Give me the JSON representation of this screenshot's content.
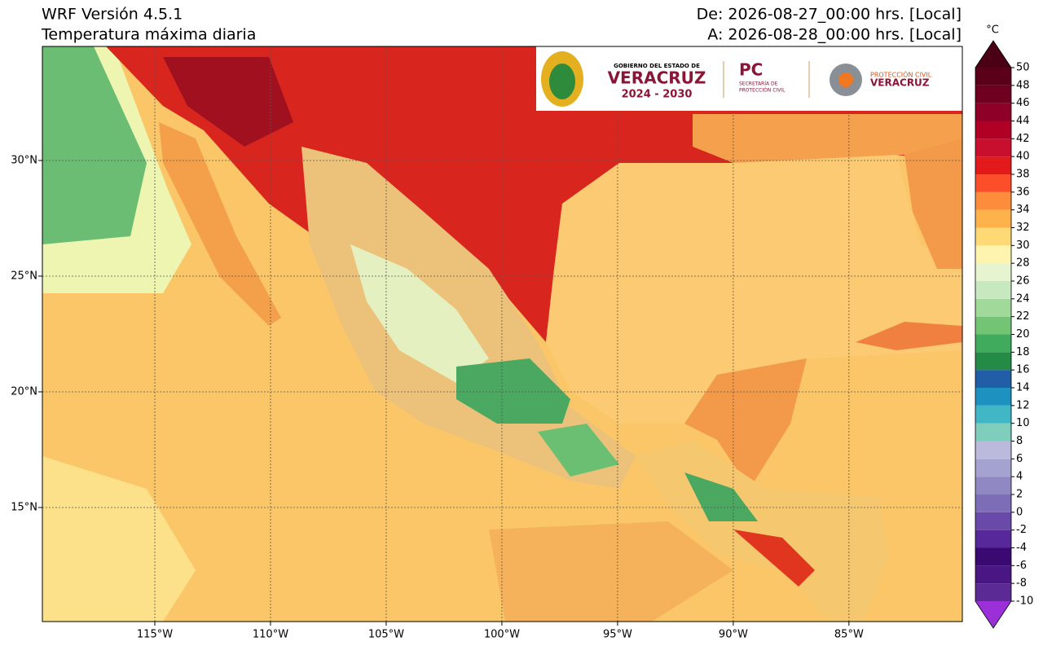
{
  "header": {
    "title": "WRF Versión 4.5.1",
    "subtitle": "Temperatura máxima diaria",
    "from": "De: 2026-08-27_00:00 hrs. [Local]",
    "to": "A: 2026-08-28_00:00 hrs. [Local]"
  },
  "map": {
    "lonlim": [
      -119.86,
      -80.1
    ],
    "latlim": [
      10.07,
      34.93
    ],
    "lon_ticks": [
      {
        "value": -115,
        "label": "115°W"
      },
      {
        "value": -110,
        "label": "110°W"
      },
      {
        "value": -105,
        "label": "105°W"
      },
      {
        "value": -100,
        "label": "100°W"
      },
      {
        "value": -95,
        "label": "95°W"
      },
      {
        "value": -90,
        "label": "90°W"
      },
      {
        "value": -85,
        "label": "85°W"
      }
    ],
    "lat_ticks": [
      {
        "value": 15,
        "label": "15°N"
      },
      {
        "value": 20,
        "label": "20°N"
      },
      {
        "value": 25,
        "label": "25°N"
      },
      {
        "value": 30,
        "label": "30°N"
      }
    ],
    "grid": true
  },
  "colorbar": {
    "unit": "°C",
    "ticks": [
      -10,
      -8,
      -6,
      -4,
      -2,
      0,
      2,
      4,
      6,
      8,
      10,
      12,
      14,
      16,
      18,
      20,
      22,
      24,
      26,
      28,
      30,
      32,
      34,
      36,
      38,
      40,
      42,
      44,
      46,
      48,
      50
    ],
    "colors": [
      "#5b2a94",
      "#4a1684",
      "#3a0a72",
      "#56289a",
      "#6a4aa8",
      "#7d6cb6",
      "#8f88c2",
      "#a4a2cf",
      "#bcbadc",
      "#7fcdbb",
      "#41b6c4",
      "#1d91c0",
      "#225ea8",
      "#238b45",
      "#41ab5d",
      "#74c476",
      "#a1d99b",
      "#c7e9c0",
      "#e6f5d0",
      "#fff3b0",
      "#fed976",
      "#feb24c",
      "#fd8d3c",
      "#fc4e2a",
      "#e31a1c",
      "#c8102e",
      "#b10026",
      "#8f0028",
      "#700020",
      "#5a0018"
    ],
    "under_color": "#9b30d9",
    "over_color": "#4a0015"
  },
  "logo": {
    "gov_line": "GOBIERNO DEL ESTADO DE",
    "state": "VERACRUZ",
    "years": "2024 - 2030",
    "pc": "PC",
    "pc_sub_1": "SECRETARÍA DE",
    "pc_sub_2": "PROTECCIÓN CIVIL",
    "pc2_top": "PROTECCIÓN CIVIL",
    "pc2_bottom": "VERACRUZ"
  }
}
